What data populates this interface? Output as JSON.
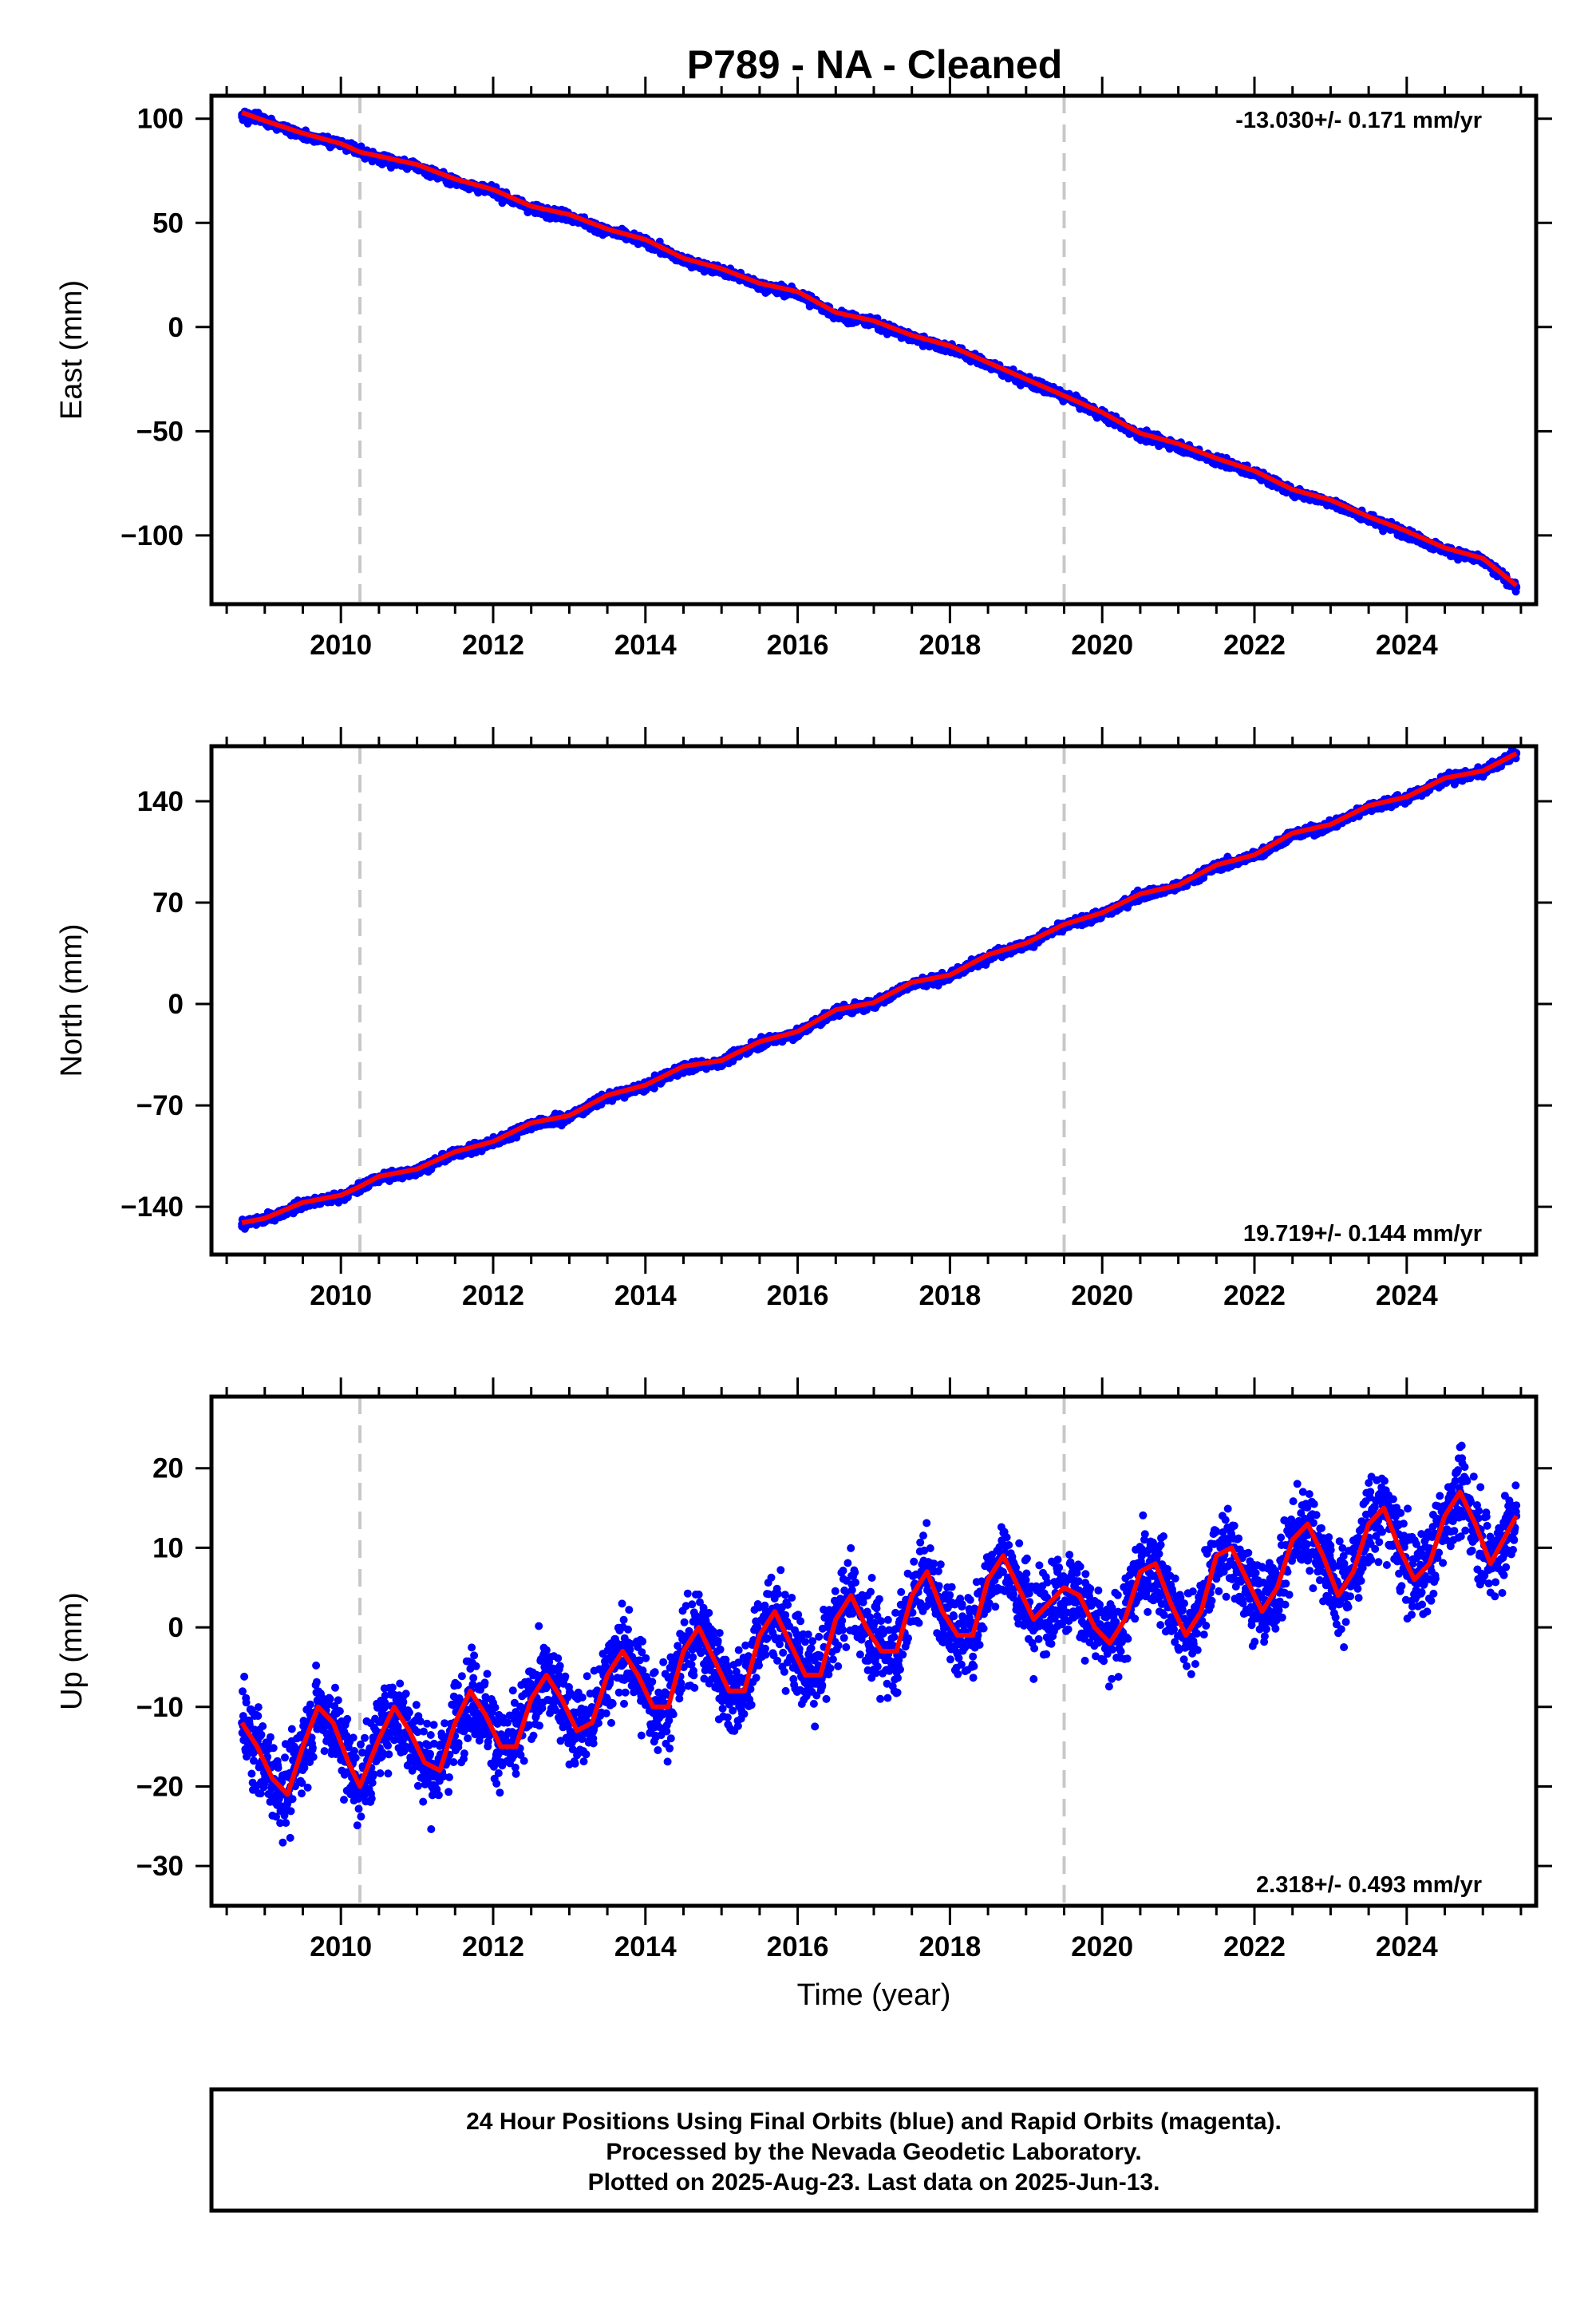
{
  "figure": {
    "title": "P789  - NA - Cleaned",
    "xlabel": "Time (year)",
    "footer": [
      "24 Hour Positions Using Final Orbits (blue) and Rapid Orbits (magenta).",
      "Processed by the Nevada Geodetic Laboratory.",
      "Plotted on 2025-Aug-23. Last data on 2025-Jun-13."
    ]
  },
  "colors": {
    "final_orbits": "#0000ff",
    "model_fit": "#ff0000",
    "event_lines": "#c8c8c8",
    "frame": "#000000"
  },
  "chart_data": [
    {
      "type": "scatter",
      "component": "East",
      "ylabel": "East (mm)",
      "rate_label": "-13.030+/- 0.171 mm/yr",
      "xlim": [
        2008.3,
        2025.7
      ],
      "ylim": [
        -133,
        111
      ],
      "xticks": [
        2010,
        2012,
        2014,
        2016,
        2018,
        2020,
        2022,
        2024
      ],
      "yticks": [
        100,
        50,
        0,
        -50,
        -100
      ],
      "event_lines": [
        2010.25,
        2019.5
      ],
      "series": [
        {
          "name": "24 Hour Positions Using Final Orbits (blue)",
          "x": [
            2008.7,
            2009.0,
            2009.5,
            2010.0,
            2010.25,
            2010.5,
            2011.0,
            2011.5,
            2012.0,
            2012.5,
            2013.0,
            2013.5,
            2014.0,
            2014.5,
            2015.0,
            2015.5,
            2016.0,
            2016.5,
            2017.0,
            2017.5,
            2018.0,
            2018.5,
            2019.0,
            2019.5,
            2020.0,
            2020.5,
            2021.0,
            2021.5,
            2022.0,
            2022.5,
            2023.0,
            2023.5,
            2024.0,
            2024.5,
            2025.0,
            2025.44
          ],
          "y": [
            102,
            99,
            92,
            88,
            84,
            81,
            77,
            70,
            65,
            57,
            53,
            46,
            41,
            32,
            27,
            20,
            16,
            6,
            2,
            -5,
            -10,
            -18,
            -26,
            -33,
            -42,
            -52,
            -57,
            -64,
            -70,
            -79,
            -84,
            -92,
            -99,
            -107,
            -112,
            -125
          ]
        },
        {
          "name": "Model fit (red)",
          "x": [
            2008.7,
            2009.0,
            2009.5,
            2010.0,
            2010.25,
            2010.5,
            2011.0,
            2011.5,
            2012.0,
            2012.5,
            2013.0,
            2013.5,
            2014.0,
            2014.5,
            2015.0,
            2015.5,
            2016.0,
            2016.5,
            2017.0,
            2017.5,
            2018.0,
            2018.5,
            2019.0,
            2019.5,
            2020.0,
            2020.5,
            2021.0,
            2021.5,
            2022.0,
            2022.5,
            2023.0,
            2023.5,
            2024.0,
            2024.5,
            2025.0,
            2025.44
          ],
          "y": [
            103,
            99,
            93,
            88,
            84,
            82,
            78,
            71,
            66,
            58,
            54,
            47,
            42,
            33,
            28,
            21,
            17,
            7,
            3,
            -4,
            -9,
            -17,
            -25,
            -33,
            -41,
            -51,
            -56,
            -63,
            -69,
            -78,
            -83,
            -91,
            -98,
            -106,
            -111,
            -124
          ]
        }
      ]
    },
    {
      "type": "scatter",
      "component": "North",
      "ylabel": "North (mm)",
      "rate_label": "19.719+/- 0.144 mm/yr",
      "xlim": [
        2008.3,
        2025.7
      ],
      "ylim": [
        -173,
        178
      ],
      "xticks": [
        2010,
        2012,
        2014,
        2016,
        2018,
        2020,
        2022,
        2024
      ],
      "yticks": [
        140,
        70,
        0,
        -70,
        -140
      ],
      "event_lines": [
        2010.25,
        2019.5
      ],
      "series": [
        {
          "name": "24 Hour Positions Using Final Orbits (blue)",
          "x": [
            2008.7,
            2009.0,
            2009.5,
            2010.0,
            2010.25,
            2010.5,
            2011.0,
            2011.5,
            2012.0,
            2012.5,
            2013.0,
            2013.5,
            2014.0,
            2014.5,
            2015.0,
            2015.5,
            2016.0,
            2016.5,
            2017.0,
            2017.5,
            2018.0,
            2018.5,
            2019.0,
            2019.5,
            2020.0,
            2020.5,
            2021.0,
            2021.5,
            2022.0,
            2022.5,
            2023.0,
            2023.5,
            2024.0,
            2024.5,
            2025.0,
            2025.44
          ],
          "y": [
            -152,
            -149,
            -138,
            -133,
            -127,
            -120,
            -115,
            -103,
            -96,
            -83,
            -78,
            -64,
            -57,
            -44,
            -40,
            -27,
            -20,
            -5,
            0,
            14,
            19,
            33,
            41,
            54,
            62,
            75,
            81,
            95,
            102,
            117,
            123,
            136,
            142,
            155,
            160,
            173
          ]
        },
        {
          "name": "Model fit (red)",
          "x": [
            2008.7,
            2009.0,
            2009.5,
            2010.0,
            2010.25,
            2010.5,
            2011.0,
            2011.5,
            2012.0,
            2012.5,
            2013.0,
            2013.5,
            2014.0,
            2014.5,
            2015.0,
            2015.5,
            2016.0,
            2016.5,
            2017.0,
            2017.5,
            2018.0,
            2018.5,
            2019.0,
            2019.5,
            2020.0,
            2020.5,
            2021.0,
            2021.5,
            2022.0,
            2022.5,
            2023.0,
            2023.5,
            2024.0,
            2024.5,
            2025.0,
            2025.44
          ],
          "y": [
            -151,
            -148,
            -137,
            -132,
            -126,
            -119,
            -114,
            -102,
            -95,
            -82,
            -77,
            -63,
            -56,
            -43,
            -39,
            -26,
            -19,
            -4,
            1,
            15,
            20,
            34,
            42,
            55,
            63,
            76,
            82,
            96,
            103,
            118,
            124,
            137,
            143,
            156,
            161,
            173
          ]
        }
      ]
    },
    {
      "type": "scatter",
      "component": "Up",
      "ylabel": "Up (mm)",
      "rate_label": "2.318+/- 0.493 mm/yr",
      "xlim": [
        2008.3,
        2025.7
      ],
      "ylim": [
        -35,
        29
      ],
      "xticks": [
        2010,
        2012,
        2014,
        2016,
        2018,
        2020,
        2022,
        2024
      ],
      "yticks": [
        20,
        10,
        0,
        -10,
        -20,
        -30
      ],
      "event_lines": [
        2010.25,
        2019.5
      ],
      "series": [
        {
          "name": "24 Hour Positions Using Final Orbits (blue)",
          "x": [
            2008.7,
            2008.9,
            2009.1,
            2009.3,
            2009.5,
            2009.7,
            2009.9,
            2010.1,
            2010.25,
            2010.5,
            2010.7,
            2010.9,
            2011.1,
            2011.3,
            2011.5,
            2011.7,
            2011.9,
            2012.1,
            2012.3,
            2012.5,
            2012.7,
            2012.9,
            2013.1,
            2013.3,
            2013.5,
            2013.7,
            2013.9,
            2014.1,
            2014.3,
            2014.5,
            2014.7,
            2014.9,
            2015.1,
            2015.3,
            2015.5,
            2015.7,
            2015.9,
            2016.1,
            2016.3,
            2016.5,
            2016.7,
            2016.9,
            2017.1,
            2017.3,
            2017.5,
            2017.7,
            2017.9,
            2018.1,
            2018.3,
            2018.5,
            2018.7,
            2018.9,
            2019.1,
            2019.3,
            2019.5,
            2019.7,
            2019.9,
            2020.1,
            2020.3,
            2020.5,
            2020.7,
            2020.9,
            2021.1,
            2021.3,
            2021.5,
            2021.7,
            2021.9,
            2022.1,
            2022.3,
            2022.5,
            2022.7,
            2022.9,
            2023.1,
            2023.3,
            2023.5,
            2023.7,
            2023.9,
            2024.1,
            2024.3,
            2024.5,
            2024.7,
            2024.9,
            2025.1,
            2025.44
          ],
          "y": [
            -12,
            -15,
            -19,
            -21,
            -15,
            -10,
            -12,
            -17,
            -20,
            -14,
            -10,
            -13,
            -17,
            -18,
            -12,
            -8,
            -11,
            -15,
            -15,
            -9,
            -6,
            -9,
            -13,
            -12,
            -6,
            -3,
            -6,
            -10,
            -10,
            -3,
            0,
            -4,
            -8,
            -8,
            -1,
            2,
            -2,
            -6,
            -6,
            1,
            4,
            0,
            -3,
            -3,
            4,
            7,
            2,
            -1,
            -1,
            6,
            9,
            5,
            1,
            3,
            5,
            4,
            0,
            -2,
            1,
            7,
            8,
            3,
            -1,
            2,
            9,
            10,
            6,
            2,
            5,
            11,
            13,
            9,
            4,
            7,
            13,
            15,
            10,
            6,
            8,
            14,
            17,
            13,
            8,
            14
          ]
        },
        {
          "name": "Model fit (red)",
          "x": [
            2008.7,
            2008.9,
            2009.1,
            2009.3,
            2009.5,
            2009.7,
            2009.9,
            2010.1,
            2010.25,
            2010.5,
            2010.7,
            2010.9,
            2011.1,
            2011.3,
            2011.5,
            2011.7,
            2011.9,
            2012.1,
            2012.3,
            2012.5,
            2012.7,
            2012.9,
            2013.1,
            2013.3,
            2013.5,
            2013.7,
            2013.9,
            2014.1,
            2014.3,
            2014.5,
            2014.7,
            2014.9,
            2015.1,
            2015.3,
            2015.5,
            2015.7,
            2015.9,
            2016.1,
            2016.3,
            2016.5,
            2016.7,
            2016.9,
            2017.1,
            2017.3,
            2017.5,
            2017.7,
            2017.9,
            2018.1,
            2018.3,
            2018.5,
            2018.7,
            2018.9,
            2019.1,
            2019.3,
            2019.5,
            2019.7,
            2019.9,
            2020.1,
            2020.3,
            2020.5,
            2020.7,
            2020.9,
            2021.1,
            2021.3,
            2021.5,
            2021.7,
            2021.9,
            2022.1,
            2022.3,
            2022.5,
            2022.7,
            2022.9,
            2023.1,
            2023.3,
            2023.5,
            2023.7,
            2023.9,
            2024.1,
            2024.3,
            2024.5,
            2024.7,
            2024.9,
            2025.1,
            2025.44
          ],
          "y": [
            -12,
            -15,
            -19,
            -21,
            -15,
            -10,
            -12,
            -17,
            -20,
            -14,
            -10,
            -13,
            -17,
            -18,
            -12,
            -8,
            -11,
            -15,
            -15,
            -9,
            -6,
            -9,
            -13,
            -12,
            -6,
            -3,
            -6,
            -10,
            -10,
            -3,
            0,
            -4,
            -8,
            -8,
            -1,
            2,
            -2,
            -6,
            -6,
            1,
            4,
            0,
            -3,
            -3,
            4,
            7,
            2,
            -1,
            -1,
            6,
            9,
            5,
            1,
            3,
            5,
            4,
            0,
            -2,
            1,
            7,
            8,
            3,
            -1,
            2,
            9,
            10,
            6,
            2,
            5,
            11,
            13,
            9,
            4,
            7,
            13,
            15,
            10,
            6,
            8,
            14,
            17,
            13,
            8,
            14
          ]
        }
      ]
    }
  ]
}
